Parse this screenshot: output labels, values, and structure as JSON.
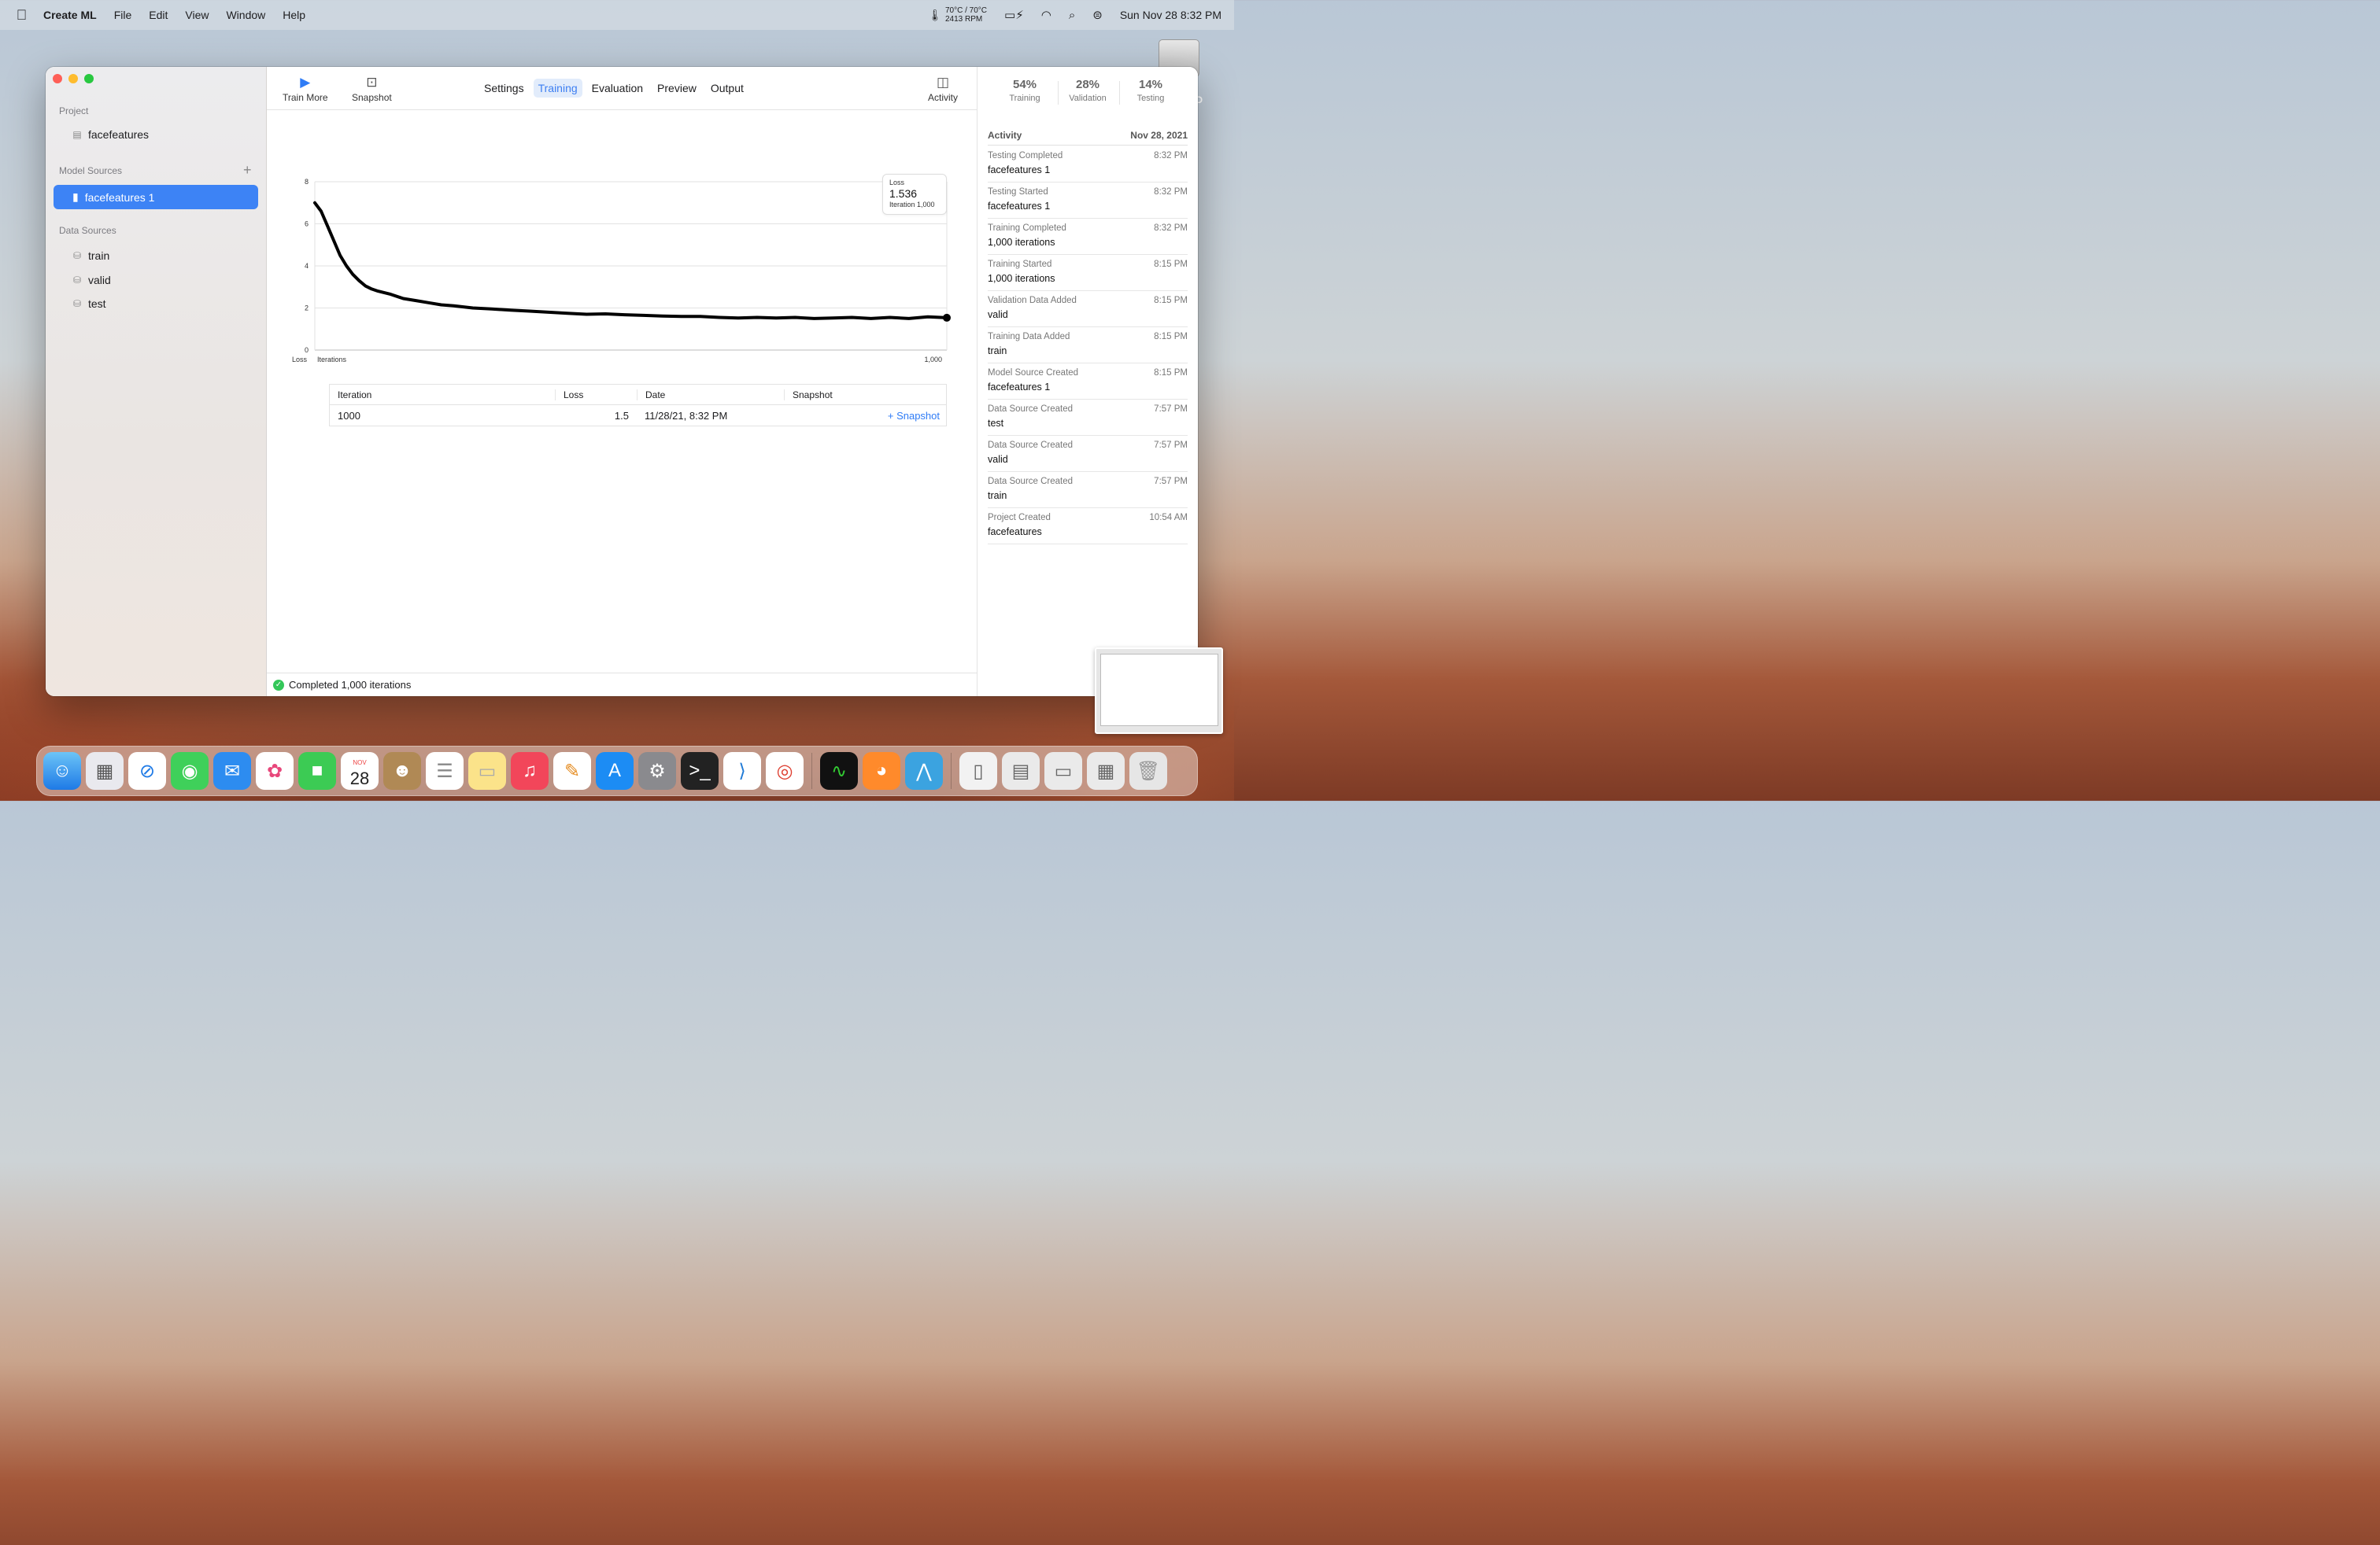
{
  "menubar": {
    "app": "Create ML",
    "menus": [
      "File",
      "Edit",
      "View",
      "Window",
      "Help"
    ],
    "temp_line1": "70°C / 70°C",
    "temp_line2": "2413 RPM",
    "clock": "Sun Nov 28  8:32 PM"
  },
  "sidebar": {
    "project_title": "Project",
    "project_item": "facefeatures",
    "model_sources_title": "Model Sources",
    "model_item": "facefeatures 1",
    "data_sources_title": "Data Sources",
    "data_items": [
      "train",
      "valid",
      "test"
    ]
  },
  "toolbar": {
    "train_more": "Train More",
    "snapshot": "Snapshot",
    "activity": "Activity",
    "tabs": [
      "Settings",
      "Training",
      "Evaluation",
      "Preview",
      "Output"
    ],
    "active_tab": "Training"
  },
  "chart_data": {
    "type": "line",
    "xlabel": "Iterations",
    "ylabel": "Loss",
    "ylim": [
      0,
      8
    ],
    "yticks": [
      "0",
      "2",
      "4",
      "6",
      "8"
    ],
    "xtick_end": "1,000",
    "x": [
      0,
      10,
      20,
      30,
      40,
      50,
      60,
      70,
      80,
      90,
      100,
      120,
      140,
      160,
      180,
      200,
      220,
      250,
      280,
      310,
      340,
      370,
      400,
      430,
      460,
      490,
      520,
      550,
      580,
      610,
      640,
      670,
      700,
      730,
      760,
      790,
      820,
      850,
      880,
      910,
      940,
      970,
      1000
    ],
    "y": [
      7.0,
      6.6,
      5.9,
      5.2,
      4.5,
      4.0,
      3.6,
      3.3,
      3.05,
      2.9,
      2.8,
      2.65,
      2.45,
      2.35,
      2.25,
      2.15,
      2.1,
      2.0,
      1.95,
      1.9,
      1.85,
      1.8,
      1.75,
      1.7,
      1.72,
      1.68,
      1.65,
      1.62,
      1.6,
      1.6,
      1.55,
      1.52,
      1.55,
      1.52,
      1.55,
      1.5,
      1.52,
      1.55,
      1.5,
      1.55,
      1.5,
      1.58,
      1.536
    ]
  },
  "tooltip": {
    "label": "Loss",
    "value": "1.536",
    "iteration": "Iteration 1,000"
  },
  "table": {
    "headers": [
      "Iteration",
      "Loss",
      "Date",
      "Snapshot"
    ],
    "row": {
      "iteration": "1000",
      "loss": "1.5",
      "date": "11/28/21, 8:32 PM",
      "snapshot": "+ Snapshot"
    }
  },
  "status": "Completed 1,000 iterations",
  "inspector": {
    "splits": [
      {
        "pct": "54%",
        "label": "Training"
      },
      {
        "pct": "28%",
        "label": "Validation"
      },
      {
        "pct": "14%",
        "label": "Testing"
      }
    ],
    "activity_title": "Activity",
    "activity_date": "Nov 28, 2021",
    "activities": [
      {
        "event": "Testing Completed",
        "time": "8:32 PM",
        "detail": "facefeatures 1"
      },
      {
        "event": "Testing Started",
        "time": "8:32 PM",
        "detail": "facefeatures 1"
      },
      {
        "event": "Training Completed",
        "time": "8:32 PM",
        "detail": "1,000 iterations"
      },
      {
        "event": "Training Started",
        "time": "8:15 PM",
        "detail": "1,000 iterations"
      },
      {
        "event": "Validation Data Added",
        "time": "8:15 PM",
        "detail": "valid"
      },
      {
        "event": "Training Data Added",
        "time": "8:15 PM",
        "detail": "train"
      },
      {
        "event": "Model Source Created",
        "time": "8:15 PM",
        "detail": "facefeatures 1"
      },
      {
        "event": "Data Source Created",
        "time": "7:57 PM",
        "detail": "test"
      },
      {
        "event": "Data Source Created",
        "time": "7:57 PM",
        "detail": "valid"
      },
      {
        "event": "Data Source Created",
        "time": "7:57 PM",
        "detail": "train"
      },
      {
        "event": "Project Created",
        "time": "10:54 AM",
        "detail": "facefeatures"
      }
    ]
  },
  "desktop": {
    "hd_label": "HD"
  },
  "dock": {
    "apps": [
      "finder",
      "launchpad",
      "safari",
      "messages",
      "mail",
      "photos",
      "facetime",
      "calendar",
      "contacts",
      "reminders",
      "notes",
      "music",
      "pages",
      "app-store",
      "system-preferences",
      "terminal",
      "vscode",
      "chrome",
      "activity-monitor",
      "firefox",
      "create-ml"
    ],
    "calendar_month": "NOV",
    "calendar_day": "28"
  }
}
